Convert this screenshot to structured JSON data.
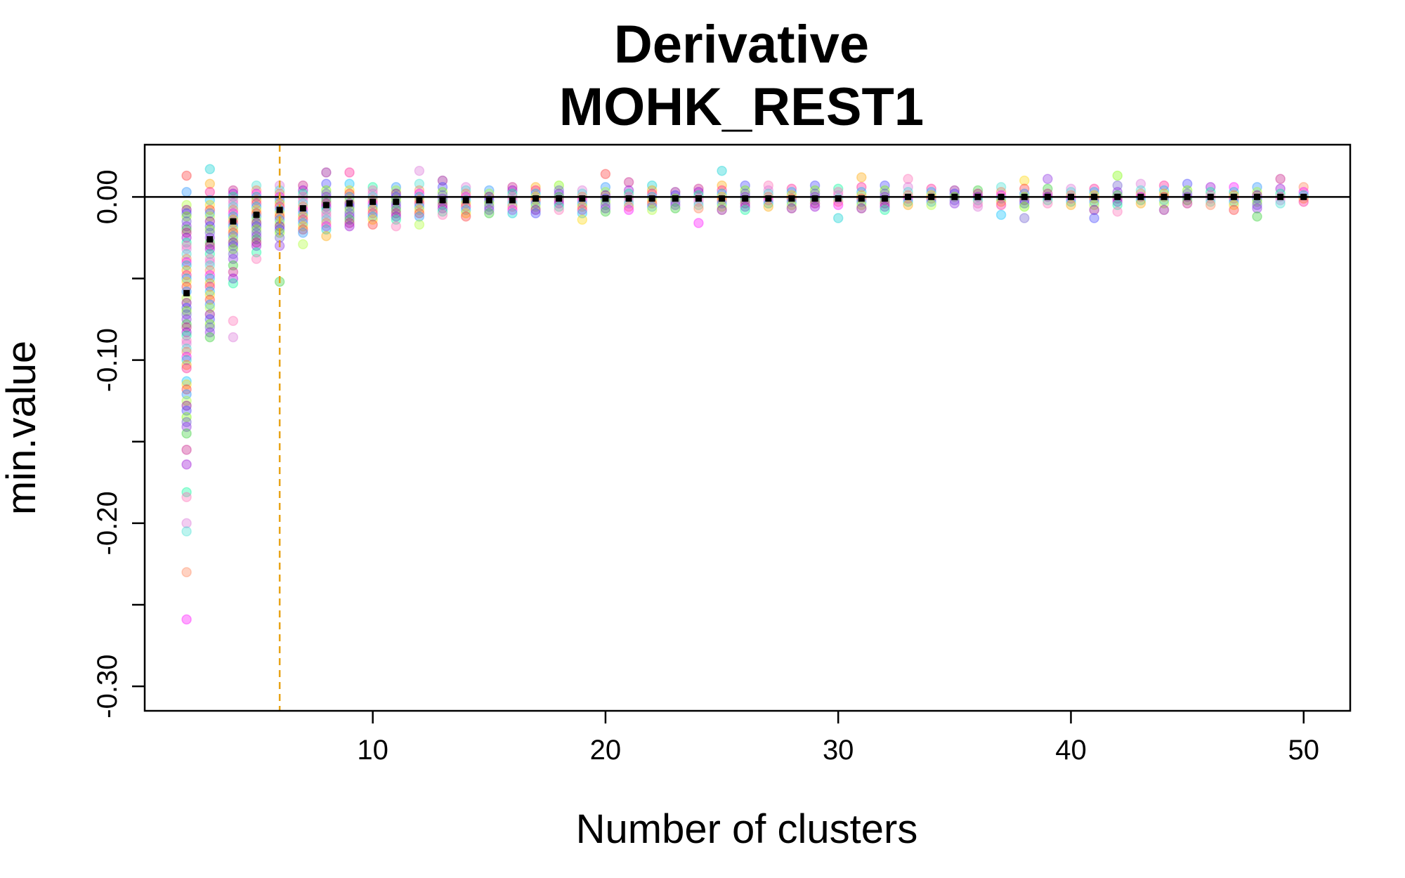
{
  "chart_data": {
    "type": "scatter",
    "title": "Derivative",
    "subtitle": "MOHK_REST1",
    "xlabel": "Number of clusters",
    "ylabel": "min.value",
    "xlim": [
      0.2,
      52
    ],
    "ylim": [
      -0.315,
      0.032
    ],
    "x_ticks": [
      10,
      20,
      30,
      40,
      50
    ],
    "x_tick_labels": [
      "10",
      "20",
      "30",
      "40",
      "50"
    ],
    "y_ticks": [
      0.0,
      -0.05,
      -0.1,
      -0.15,
      -0.2,
      -0.25,
      -0.3
    ],
    "y_tick_labels": [
      "0.00",
      "",
      "-0.10",
      "",
      "-0.20",
      "",
      "-0.30"
    ],
    "grid": false,
    "reference_lines": {
      "horizontal_y": 0.0,
      "horizontal_color": "#000000",
      "vertical_x": 6,
      "vertical_color": "#e8a317",
      "vertical_style": "dashed"
    },
    "point_colors": [
      "#ff3030",
      "#ff1493",
      "#ff00ff",
      "#da70d6",
      "#9400d3",
      "#8a2be2",
      "#4040ff",
      "#1e90ff",
      "#00bfff",
      "#00ced1",
      "#40e0d0",
      "#00fa9a",
      "#32cd32",
      "#7cfc00",
      "#adff2f",
      "#ffd700",
      "#ffa500",
      "#ff7f50",
      "#ff69b4",
      "#c71585",
      "#6a5acd",
      "#8b008b"
    ],
    "point_opacity": 0.35,
    "series": [
      {
        "name": "",
        "x": 2,
        "values": [
          0.013,
          0.003,
          -0.005,
          -0.008,
          -0.01,
          -0.012,
          -0.015,
          -0.018,
          -0.02,
          -0.022,
          -0.025,
          -0.028,
          -0.03,
          -0.032,
          -0.035,
          -0.038,
          -0.04,
          -0.042,
          -0.045,
          -0.048,
          -0.05,
          -0.052,
          -0.055,
          -0.058,
          -0.062,
          -0.065,
          -0.068,
          -0.07,
          -0.072,
          -0.075,
          -0.078,
          -0.08,
          -0.083,
          -0.085,
          -0.088,
          -0.09,
          -0.093,
          -0.095,
          -0.098,
          -0.1,
          -0.103,
          -0.105,
          -0.113,
          -0.115,
          -0.118,
          -0.121,
          -0.125,
          -0.128,
          -0.131,
          -0.135,
          -0.138,
          -0.141,
          -0.145,
          -0.155,
          -0.164,
          -0.181,
          -0.184,
          -0.2,
          -0.205,
          -0.23,
          -0.259
        ]
      },
      {
        "name": "",
        "x": 3,
        "values": [
          0.017,
          0.008,
          0.003,
          -0.002,
          -0.005,
          -0.008,
          -0.01,
          -0.012,
          -0.015,
          -0.018,
          -0.02,
          -0.022,
          -0.025,
          -0.028,
          -0.03,
          -0.032,
          -0.035,
          -0.038,
          -0.04,
          -0.042,
          -0.045,
          -0.048,
          -0.05,
          -0.053,
          -0.055,
          -0.058,
          -0.06,
          -0.063,
          -0.066,
          -0.068,
          -0.072,
          -0.075,
          -0.078,
          -0.08,
          -0.083,
          -0.086
        ]
      },
      {
        "name": "",
        "x": 4,
        "values": [
          0.004,
          0.002,
          0.0,
          -0.002,
          -0.004,
          -0.006,
          -0.008,
          -0.01,
          -0.012,
          -0.014,
          -0.016,
          -0.018,
          -0.02,
          -0.022,
          -0.024,
          -0.026,
          -0.028,
          -0.03,
          -0.032,
          -0.035,
          -0.038,
          -0.042,
          -0.046,
          -0.05,
          -0.053,
          -0.076,
          -0.086
        ]
      },
      {
        "name": "",
        "x": 5,
        "values": [
          0.007,
          0.004,
          0.002,
          0.0,
          -0.002,
          -0.004,
          -0.006,
          -0.008,
          -0.01,
          -0.012,
          -0.014,
          -0.016,
          -0.018,
          -0.02,
          -0.022,
          -0.024,
          -0.026,
          -0.028,
          -0.03,
          -0.034,
          -0.038
        ]
      },
      {
        "name": "",
        "x": 6,
        "values": [
          0.007,
          0.004,
          0.002,
          0.0,
          -0.002,
          -0.004,
          -0.006,
          -0.008,
          -0.01,
          -0.012,
          -0.014,
          -0.016,
          -0.018,
          -0.02,
          -0.022,
          -0.025,
          -0.03,
          -0.052
        ]
      },
      {
        "name": "",
        "x": 7,
        "values": [
          0.007,
          0.004,
          0.002,
          0.0,
          -0.002,
          -0.004,
          -0.006,
          -0.008,
          -0.01,
          -0.012,
          -0.014,
          -0.016,
          -0.018,
          -0.02,
          -0.022,
          -0.029
        ]
      },
      {
        "name": "",
        "x": 8,
        "values": [
          0.015,
          0.008,
          0.004,
          0.002,
          0.0,
          -0.002,
          -0.004,
          -0.006,
          -0.008,
          -0.01,
          -0.012,
          -0.014,
          -0.016,
          -0.018,
          -0.02,
          -0.024
        ]
      },
      {
        "name": "",
        "x": 9,
        "values": [
          0.015,
          0.008,
          0.004,
          0.002,
          0.0,
          -0.002,
          -0.004,
          -0.006,
          -0.008,
          -0.01,
          -0.012,
          -0.014,
          -0.016,
          -0.018
        ]
      },
      {
        "name": "",
        "x": 10,
        "values": [
          0.006,
          0.004,
          0.002,
          0.0,
          -0.002,
          -0.004,
          -0.006,
          -0.008,
          -0.01,
          -0.012,
          -0.014,
          -0.017
        ]
      },
      {
        "name": "",
        "x": 11,
        "values": [
          0.006,
          0.004,
          0.002,
          0.0,
          -0.002,
          -0.004,
          -0.006,
          -0.008,
          -0.01,
          -0.012,
          -0.014,
          -0.018
        ]
      },
      {
        "name": "",
        "x": 12,
        "values": [
          0.016,
          0.008,
          0.004,
          0.002,
          0.0,
          -0.002,
          -0.004,
          -0.006,
          -0.008,
          -0.01,
          -0.012,
          -0.017
        ]
      },
      {
        "name": "",
        "x": 13,
        "values": [
          0.01,
          0.006,
          0.003,
          0.001,
          -0.001,
          -0.003,
          -0.005,
          -0.007,
          -0.009,
          -0.011
        ]
      },
      {
        "name": "",
        "x": 14,
        "values": [
          0.006,
          0.004,
          0.002,
          0.0,
          -0.002,
          -0.004,
          -0.006,
          -0.008,
          -0.01,
          -0.012
        ]
      },
      {
        "name": "",
        "x": 15,
        "values": [
          0.004,
          0.002,
          0.0,
          -0.002,
          -0.004,
          -0.006,
          -0.008,
          -0.01
        ]
      },
      {
        "name": "",
        "x": 16,
        "values": [
          0.006,
          0.004,
          0.002,
          0.0,
          -0.002,
          -0.004,
          -0.006,
          -0.008,
          -0.01
        ]
      },
      {
        "name": "",
        "x": 17,
        "values": [
          0.006,
          0.004,
          0.002,
          0.0,
          -0.002,
          -0.004,
          -0.006,
          -0.008,
          -0.01
        ]
      },
      {
        "name": "",
        "x": 18,
        "values": [
          0.007,
          0.004,
          0.002,
          0.0,
          -0.002,
          -0.004,
          -0.006,
          -0.008
        ]
      },
      {
        "name": "",
        "x": 19,
        "values": [
          0.004,
          0.002,
          0.0,
          -0.002,
          -0.004,
          -0.006,
          -0.008,
          -0.01,
          -0.014
        ]
      },
      {
        "name": "",
        "x": 20,
        "values": [
          0.014,
          0.006,
          0.003,
          0.001,
          -0.001,
          -0.003,
          -0.005,
          -0.007,
          -0.009
        ]
      },
      {
        "name": "",
        "x": 21,
        "values": [
          0.009,
          0.004,
          0.002,
          0.0,
          -0.002,
          -0.004,
          -0.006,
          -0.008
        ]
      },
      {
        "name": "",
        "x": 22,
        "values": [
          0.007,
          0.004,
          0.002,
          0.0,
          -0.002,
          -0.004,
          -0.006,
          -0.008
        ]
      },
      {
        "name": "",
        "x": 23,
        "values": [
          0.003,
          0.001,
          -0.001,
          -0.003,
          -0.005,
          -0.007
        ]
      },
      {
        "name": "",
        "x": 24,
        "values": [
          0.005,
          0.003,
          0.001,
          -0.001,
          -0.003,
          -0.005,
          -0.007,
          -0.016
        ]
      },
      {
        "name": "",
        "x": 25,
        "values": [
          0.016,
          0.007,
          0.004,
          0.002,
          0.0,
          -0.002,
          -0.004,
          -0.006,
          -0.008
        ]
      },
      {
        "name": "",
        "x": 26,
        "values": [
          0.007,
          0.004,
          0.002,
          0.0,
          -0.002,
          -0.004,
          -0.006,
          -0.008
        ]
      },
      {
        "name": "",
        "x": 27,
        "values": [
          0.007,
          0.004,
          0.002,
          0.0,
          -0.002,
          -0.004,
          -0.006
        ]
      },
      {
        "name": "",
        "x": 28,
        "values": [
          0.005,
          0.003,
          0.001,
          -0.001,
          -0.003,
          -0.005,
          -0.007
        ]
      },
      {
        "name": "",
        "x": 29,
        "values": [
          0.007,
          0.004,
          0.002,
          0.0,
          -0.002,
          -0.004,
          -0.006
        ]
      },
      {
        "name": "",
        "x": 30,
        "values": [
          0.005,
          0.003,
          0.001,
          -0.001,
          -0.003,
          -0.005,
          -0.013
        ]
      },
      {
        "name": "",
        "x": 31,
        "values": [
          0.012,
          0.006,
          0.003,
          0.001,
          -0.001,
          -0.003,
          -0.005,
          -0.007
        ]
      },
      {
        "name": "",
        "x": 32,
        "values": [
          0.007,
          0.004,
          0.002,
          0.0,
          -0.002,
          -0.004,
          -0.006,
          -0.008
        ]
      },
      {
        "name": "",
        "x": 33,
        "values": [
          0.011,
          0.006,
          0.003,
          0.001,
          -0.001,
          -0.003,
          -0.005
        ]
      },
      {
        "name": "",
        "x": 34,
        "values": [
          0.005,
          0.003,
          0.001,
          -0.001,
          -0.003,
          -0.005
        ]
      },
      {
        "name": "",
        "x": 35,
        "values": [
          0.004,
          0.002,
          0.0,
          -0.002,
          -0.004
        ]
      },
      {
        "name": "",
        "x": 36,
        "values": [
          0.004,
          0.002,
          0.0,
          -0.002,
          -0.004,
          -0.006
        ]
      },
      {
        "name": "",
        "x": 37,
        "values": [
          0.006,
          0.003,
          0.001,
          -0.001,
          -0.003,
          -0.005,
          -0.011
        ]
      },
      {
        "name": "",
        "x": 38,
        "values": [
          0.01,
          0.005,
          0.002,
          0.0,
          -0.002,
          -0.004,
          -0.006,
          -0.013
        ]
      },
      {
        "name": "",
        "x": 39,
        "values": [
          0.011,
          0.005,
          0.002,
          0.0,
          -0.002,
          -0.004
        ]
      },
      {
        "name": "",
        "x": 40,
        "values": [
          0.005,
          0.003,
          0.001,
          -0.001,
          -0.003,
          -0.005
        ]
      },
      {
        "name": "",
        "x": 41,
        "values": [
          0.005,
          0.003,
          0.001,
          -0.001,
          -0.003,
          -0.005,
          -0.008,
          -0.013
        ]
      },
      {
        "name": "",
        "x": 42,
        "values": [
          0.013,
          0.007,
          0.003,
          0.001,
          -0.001,
          -0.003,
          -0.005,
          -0.009
        ]
      },
      {
        "name": "",
        "x": 43,
        "values": [
          0.008,
          0.004,
          0.002,
          0.0,
          -0.002,
          -0.004
        ]
      },
      {
        "name": "",
        "x": 44,
        "values": [
          0.007,
          0.004,
          0.002,
          0.0,
          -0.002,
          -0.004,
          -0.008
        ]
      },
      {
        "name": "",
        "x": 45,
        "values": [
          0.008,
          0.004,
          0.002,
          0.0,
          -0.002,
          -0.004
        ]
      },
      {
        "name": "",
        "x": 46,
        "values": [
          0.006,
          0.003,
          0.001,
          -0.001,
          -0.003,
          -0.005
        ]
      },
      {
        "name": "",
        "x": 47,
        "values": [
          0.006,
          0.003,
          0.001,
          -0.001,
          -0.003,
          -0.005,
          -0.008
        ]
      },
      {
        "name": "",
        "x": 48,
        "values": [
          0.006,
          0.003,
          0.001,
          -0.001,
          -0.003,
          -0.005,
          -0.007,
          -0.012
        ]
      },
      {
        "name": "",
        "x": 49,
        "values": [
          0.011,
          0.005,
          0.002,
          0.0,
          -0.002,
          -0.004
        ]
      },
      {
        "name": "",
        "x": 50,
        "values": [
          0.006,
          0.003,
          0.001,
          -0.001,
          -0.003
        ]
      }
    ],
    "mean_markers": {
      "color": "#000000",
      "x": [
        2,
        3,
        4,
        5,
        6,
        7,
        8,
        9,
        10,
        11,
        12,
        13,
        14,
        15,
        16,
        17,
        18,
        19,
        20,
        21,
        22,
        23,
        24,
        25,
        26,
        27,
        28,
        29,
        30,
        31,
        32,
        33,
        34,
        35,
        36,
        37,
        38,
        39,
        40,
        41,
        42,
        43,
        44,
        45,
        46,
        47,
        48,
        49,
        50
      ],
      "values": [
        -0.059,
        -0.026,
        -0.015,
        -0.011,
        -0.008,
        -0.007,
        -0.005,
        -0.004,
        -0.003,
        -0.003,
        -0.002,
        -0.002,
        -0.002,
        -0.002,
        -0.002,
        -0.001,
        -0.001,
        -0.001,
        -0.001,
        -0.001,
        -0.001,
        -0.001,
        -0.001,
        -0.001,
        -0.001,
        -0.001,
        -0.001,
        -0.001,
        -0.001,
        -0.001,
        -0.001,
        0.0,
        0.0,
        0.0,
        0.0,
        0.0,
        0.0,
        0.0,
        0.0,
        0.0,
        0.0,
        0.0,
        0.0,
        0.0,
        0.0,
        0.0,
        0.0,
        0.0,
        0.0
      ]
    }
  }
}
